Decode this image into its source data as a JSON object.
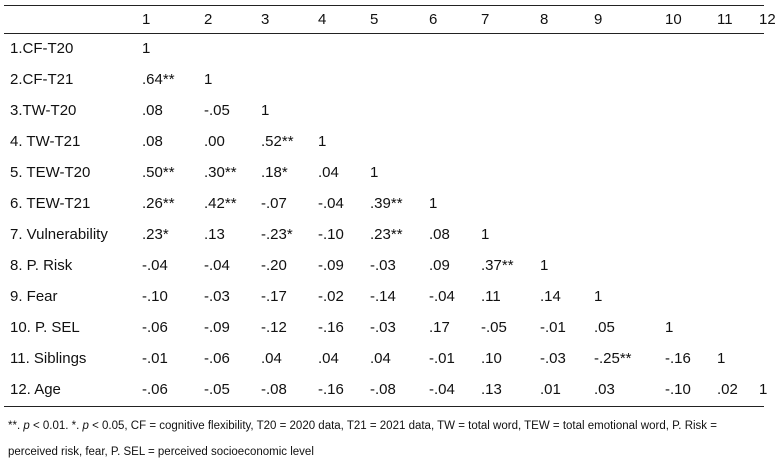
{
  "header": [
    "",
    "1",
    "2",
    "3",
    "4",
    "5",
    "6",
    "7",
    "8",
    "9",
    "10",
    "11",
    "12"
  ],
  "rows": [
    {
      "label": "1.CF-T20",
      "values": [
        "1",
        "",
        "",
        "",
        "",
        "",
        "",
        "",
        "",
        "",
        "",
        ""
      ]
    },
    {
      "label": "2.CF-T21",
      "values": [
        ".64**",
        "1",
        "",
        "",
        "",
        "",
        "",
        "",
        "",
        "",
        "",
        ""
      ]
    },
    {
      "label": "3.TW-T20",
      "values": [
        ".08",
        "-.05",
        "1",
        "",
        "",
        "",
        "",
        "",
        "",
        "",
        "",
        ""
      ]
    },
    {
      "label": "4. TW-T21",
      "values": [
        ".08",
        ".00",
        ".52**",
        "1",
        "",
        "",
        "",
        "",
        "",
        "",
        "",
        ""
      ]
    },
    {
      "label": "5. TEW-T20",
      "values": [
        ".50**",
        ".30**",
        ".18*",
        ".04",
        "1",
        "",
        "",
        "",
        "",
        "",
        "",
        ""
      ]
    },
    {
      "label": "6. TEW-T21",
      "values": [
        ".26**",
        ".42**",
        "-.07",
        "-.04",
        ".39**",
        "1",
        "",
        "",
        "",
        "",
        "",
        ""
      ]
    },
    {
      "label": "7. Vulnerability",
      "values": [
        ".23*",
        ".13",
        "-.23*",
        "-.10",
        ".23**",
        ".08",
        "1",
        "",
        "",
        "",
        "",
        ""
      ]
    },
    {
      "label": "8. P. Risk",
      "values": [
        "-.04",
        "-.04",
        "-.20",
        "-.09",
        "-.03",
        ".09",
        ".37**",
        "1",
        "",
        "",
        "",
        ""
      ]
    },
    {
      "label": "9. Fear",
      "values": [
        "-.10",
        "-.03",
        "-.17",
        "-.02",
        "-.14",
        "-.04",
        ".11",
        ".14",
        "1",
        "",
        "",
        ""
      ]
    },
    {
      "label": "10. P. SEL",
      "values": [
        "-.06",
        "-.09",
        "-.12",
        "-.16",
        "-.03",
        ".17",
        "-.05",
        "-.01",
        ".05",
        "1",
        "",
        ""
      ]
    },
    {
      "label": "11. Siblings",
      "values": [
        "-.01",
        "-.06",
        ".04",
        ".04",
        ".04",
        "-.01",
        ".10",
        "-.03",
        "-.25**",
        "-.16",
        "1",
        ""
      ]
    },
    {
      "label": "12. Age",
      "values": [
        "-.06",
        "-.05",
        "-.08",
        "-.16",
        "-.08",
        "-.04",
        ".13",
        ".01",
        ".03",
        "-.10",
        ".02",
        "1"
      ]
    }
  ],
  "note": {
    "sig_double": "**",
    "sep1": ". ",
    "p1": "p",
    "t1": " < 0.01. ",
    "sig_single": "*",
    "sep2": ". ",
    "p2": "p",
    "t2": " < 0.05, CF = cognitive flexibility, T20 = 2020 data, T21 = 2021 data, TW = total word, TEW = total emotional word, P. Risk = perceived risk, fear, P. SEL = perceived socioeconomic level"
  }
}
